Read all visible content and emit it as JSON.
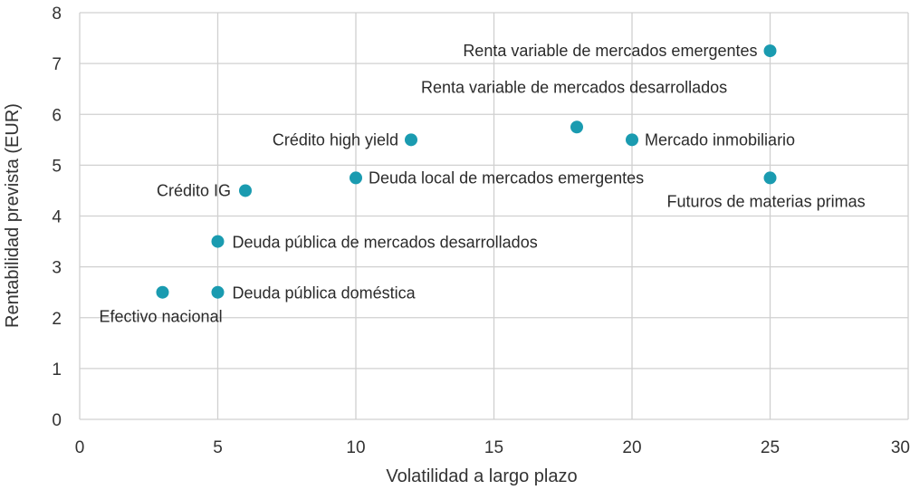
{
  "chart_data": {
    "type": "scatter",
    "title": "",
    "xlabel": "Volatilidad a largo plazo",
    "ylabel": "Rentabilidad prevista (EUR)",
    "xlim": [
      0,
      30
    ],
    "ylim": [
      0,
      8
    ],
    "x_ticks": [
      "0",
      "5",
      "10",
      "15",
      "20",
      "25",
      "30"
    ],
    "y_ticks": [
      "0",
      "1",
      "2",
      "3",
      "4",
      "5",
      "6",
      "7",
      "8"
    ],
    "grid": true,
    "marker_color": "#1a9bb0",
    "points": [
      {
        "label": "Renta variable de mercados emergentes",
        "x": 25,
        "y": 7.25
      },
      {
        "label": "Renta variable de mercados desarrollados",
        "x": 18,
        "y": 5.75
      },
      {
        "label": "Crédito high yield",
        "x": 12,
        "y": 5.5
      },
      {
        "label": "Mercado inmobiliario",
        "x": 20,
        "y": 5.5
      },
      {
        "label": "Deuda local de mercados emergentes",
        "x": 10,
        "y": 4.75
      },
      {
        "label": "Futuros de materias primas",
        "x": 25,
        "y": 4.75
      },
      {
        "label": "Crédito IG",
        "x": 6,
        "y": 4.5
      },
      {
        "label": "Deuda pública de mercados desarrollados",
        "x": 5,
        "y": 3.5
      },
      {
        "label": "Deuda pública doméstica",
        "x": 5,
        "y": 2.5
      },
      {
        "label": "Efectivo nacional",
        "x": 3,
        "y": 2.5
      }
    ]
  }
}
